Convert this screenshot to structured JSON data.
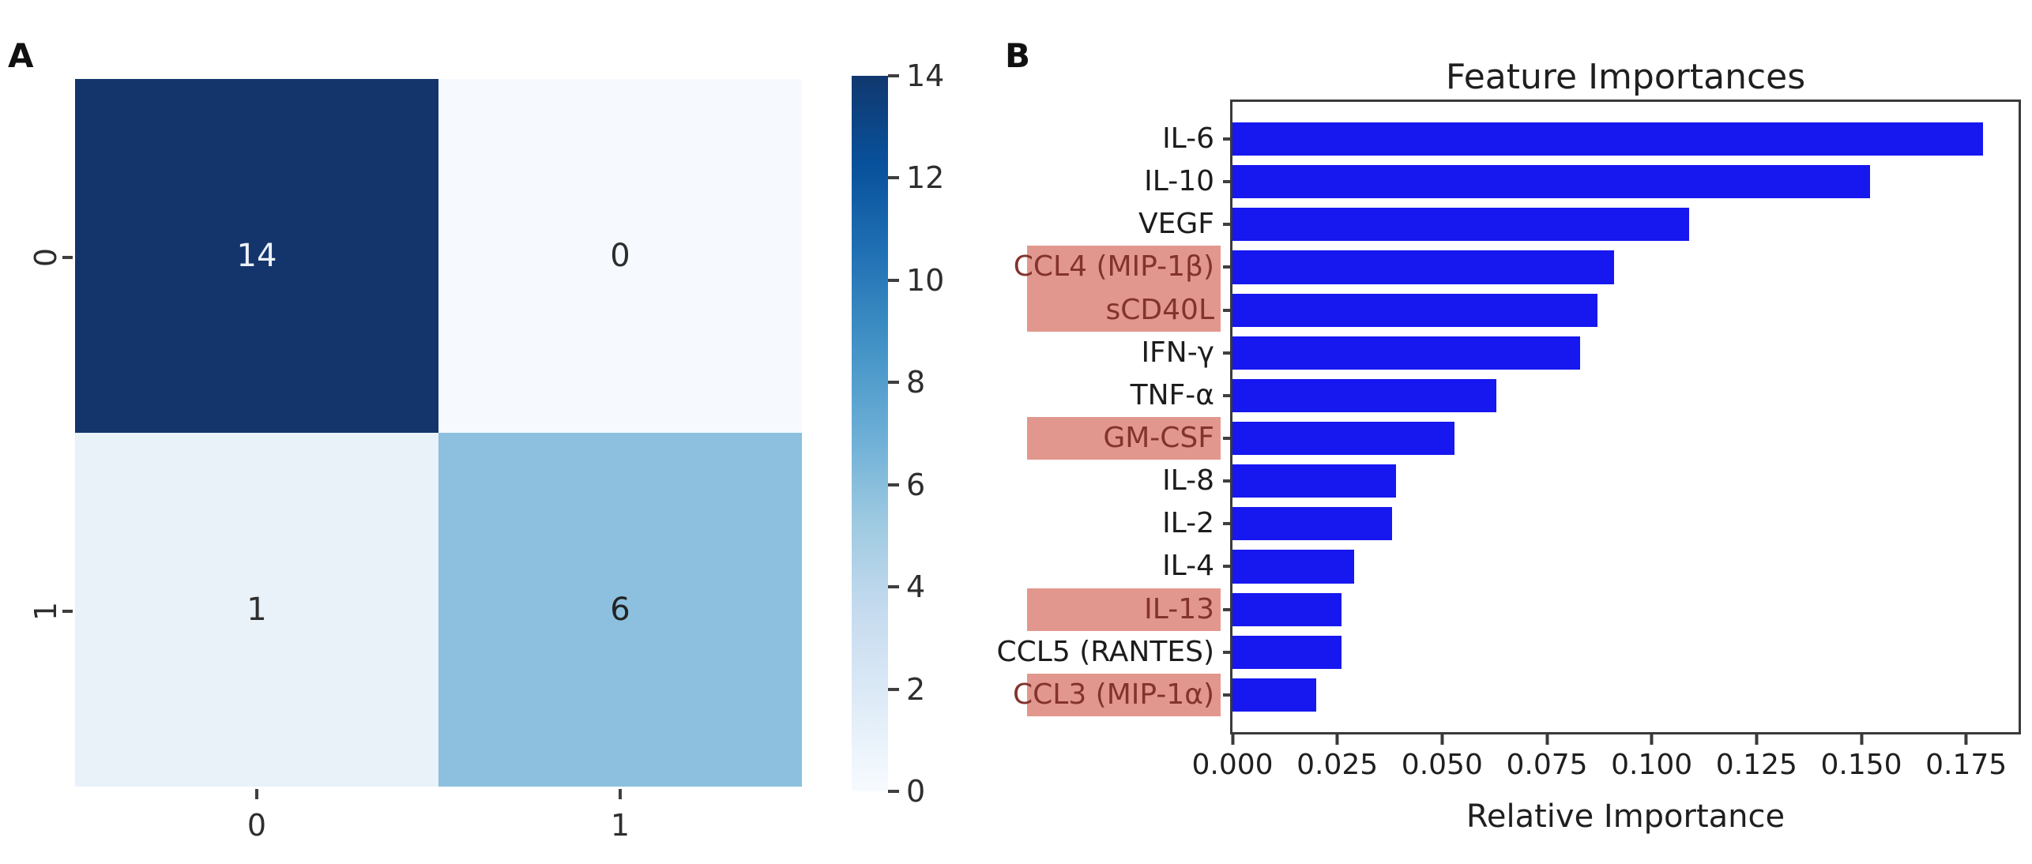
{
  "page": {
    "background": "#ffffff"
  },
  "panel_a": {
    "label": "A"
  },
  "panel_b": {
    "label": "B"
  },
  "chart_data": [
    {
      "type": "heatmap",
      "panel": "A",
      "description": "2x2 confusion matrix",
      "x_tick_labels": [
        "0",
        "1"
      ],
      "y_tick_labels": [
        "0",
        "1"
      ],
      "rows": [
        [
          14,
          0
        ],
        [
          1,
          6
        ]
      ],
      "cell_colors": [
        [
          "#14356b",
          "#f6fafe"
        ],
        [
          "#e9f1f9",
          "#8cc0de"
        ]
      ],
      "cell_text_colors": [
        [
          "#edf2f9",
          "#2e2e2e"
        ],
        [
          "#2e2e2e",
          "#232323"
        ]
      ],
      "colorbar": {
        "min": 0,
        "max": 14,
        "ticks": [
          14,
          12,
          10,
          8,
          6,
          4,
          2,
          0
        ],
        "colormap": "Blues",
        "gradient_stops": [
          "#11386e",
          "#08519c",
          "#2171b5",
          "#4292c6",
          "#6baed6",
          "#9ecae1",
          "#c6dbef",
          "#deebf7",
          "#f7fbff"
        ]
      }
    },
    {
      "type": "bar",
      "panel": "B",
      "orientation": "horizontal",
      "title": "Feature Importances",
      "xlabel": "Relative Importance",
      "bar_color": "#1717f0",
      "highlight_color": "#e2978e",
      "highlight_text_color": "#83332d",
      "xlim": [
        0,
        0.1875
      ],
      "grid": false,
      "x_ticks": [
        "0.000",
        "0.025",
        "0.050",
        "0.075",
        "0.100",
        "0.125",
        "0.150",
        "0.175"
      ],
      "x_tick_values": [
        0,
        0.025,
        0.05,
        0.075,
        0.1,
        0.125,
        0.15,
        0.175
      ],
      "items": [
        {
          "label": "IL-6",
          "value": 0.179,
          "highlighted": false
        },
        {
          "label": "IL-10",
          "value": 0.152,
          "highlighted": false
        },
        {
          "label": "VEGF",
          "value": 0.109,
          "highlighted": false
        },
        {
          "label": "CCL4 (MIP-1β)",
          "value": 0.091,
          "highlighted": true
        },
        {
          "label": "sCD40L",
          "value": 0.087,
          "highlighted": true
        },
        {
          "label": "IFN-γ",
          "value": 0.083,
          "highlighted": false
        },
        {
          "label": "TNF-α",
          "value": 0.063,
          "highlighted": false
        },
        {
          "label": "GM-CSF",
          "value": 0.053,
          "highlighted": true
        },
        {
          "label": "IL-8",
          "value": 0.039,
          "highlighted": false
        },
        {
          "label": "IL-2",
          "value": 0.038,
          "highlighted": false
        },
        {
          "label": "IL-4",
          "value": 0.029,
          "highlighted": false
        },
        {
          "label": "IL-13",
          "value": 0.026,
          "highlighted": true
        },
        {
          "label": "CCL5 (RANTES)",
          "value": 0.026,
          "highlighted": false
        },
        {
          "label": "CCL3 (MIP-1α)",
          "value": 0.02,
          "highlighted": true
        }
      ]
    }
  ]
}
